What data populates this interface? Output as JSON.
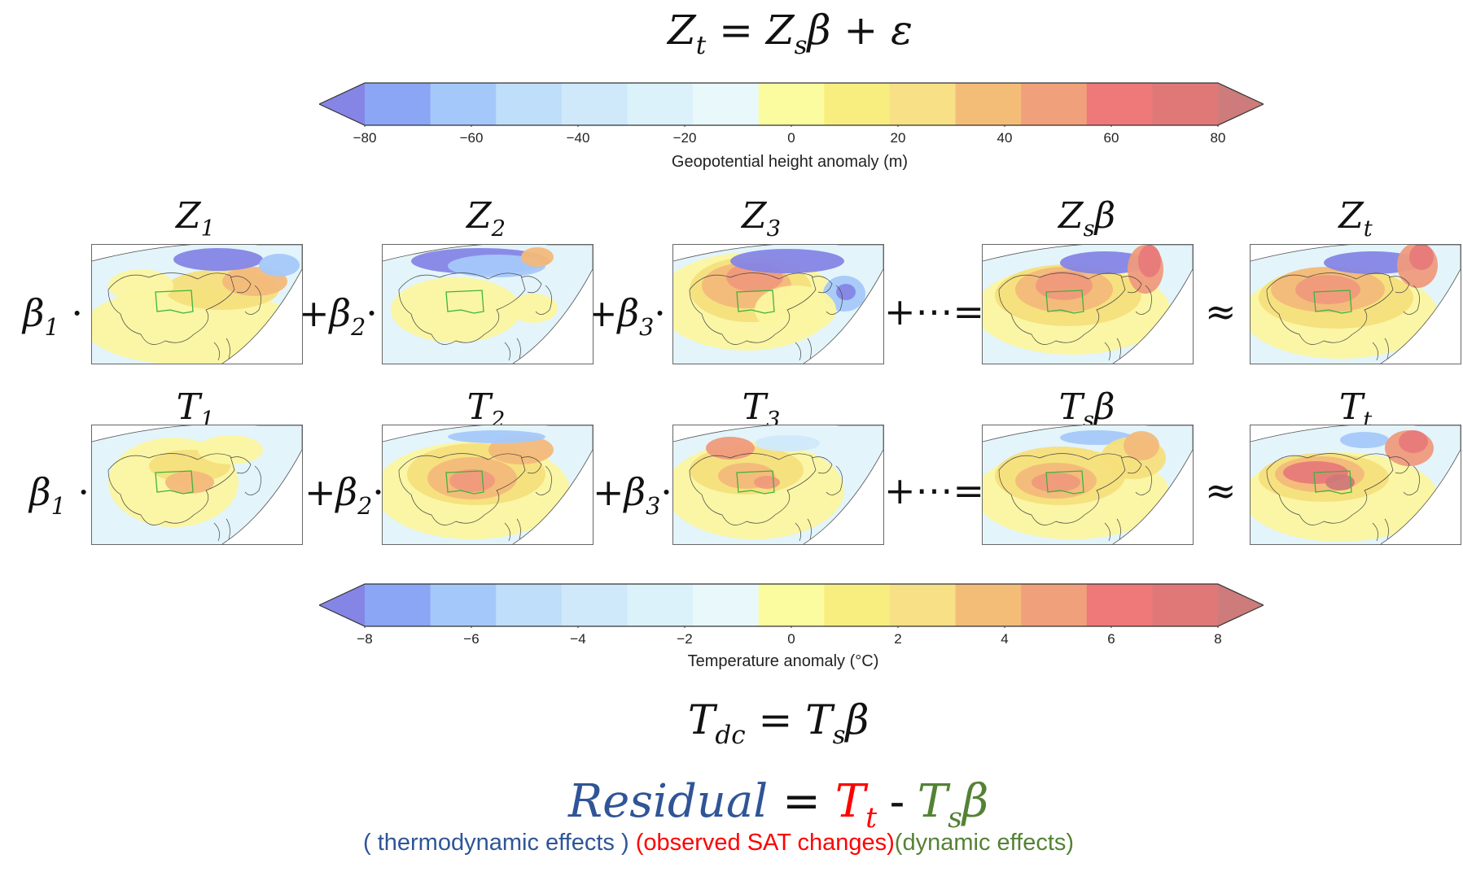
{
  "top_equation": {
    "lhs": "Z",
    "lhs_sub": "t",
    "mid": " = Z",
    "mid_sub": "s",
    "rhs": "β + ε"
  },
  "geopotential_colorbar": {
    "title": "Geopotential height anomaly (m)",
    "ticks": [
      "−80",
      "−60",
      "−40",
      "−20",
      "0",
      "20",
      "40",
      "60",
      "80"
    ],
    "colors": [
      "#8585e6",
      "#8aa6f5",
      "#a5c8fa",
      "#bfdefa",
      "#cfe9fb",
      "#dcf2fb",
      "#e9f9fb",
      "#fbfba0",
      "#f8ee80",
      "#f7e086",
      "#f3bd78",
      "#f1a07c",
      "#ef7878",
      "#e07878",
      "#cd7b7b"
    ]
  },
  "temperature_colorbar": {
    "title": "Temperature anomaly (°C)",
    "ticks": [
      "−8",
      "−6",
      "−4",
      "−2",
      "0",
      "2",
      "4",
      "6",
      "8"
    ],
    "colors": [
      "#8585e6",
      "#8aa6f5",
      "#a5c8fa",
      "#bfdefa",
      "#cfe9fb",
      "#dcf2fb",
      "#e9f9fb",
      "#fbfba0",
      "#f8ee80",
      "#f7e086",
      "#f3bd78",
      "#f1a07c",
      "#ef7878",
      "#e07878",
      "#cd7b7b"
    ]
  },
  "row_z": {
    "coef1": "β",
    "coef1_sub": "1",
    "dot": "·",
    "plus2": "+β",
    "plus2_sub": "2",
    "plus3": "+β",
    "plus3_sub": "3",
    "ellipsis_eq": "+⋯=",
    "approx": "≈",
    "titles": [
      {
        "base": "Z",
        "sub": "1",
        "tail": ""
      },
      {
        "base": "Z",
        "sub": "2",
        "tail": ""
      },
      {
        "base": "Z",
        "sub": "3",
        "tail": ""
      },
      {
        "base": "Z",
        "sub": "s",
        "tail": "β"
      },
      {
        "base": "Z",
        "sub": "t",
        "tail": ""
      }
    ]
  },
  "row_t": {
    "coef1": "β",
    "coef1_sub": "1",
    "dot": "·",
    "plus2": "+β",
    "plus2_sub": "2",
    "plus3": "+β",
    "plus3_sub": "3",
    "ellipsis_eq": "+⋯=",
    "approx": "≈",
    "titles": [
      {
        "base": "T",
        "sub": "1",
        "tail": ""
      },
      {
        "base": "T",
        "sub": "2",
        "tail": ""
      },
      {
        "base": "T",
        "sub": "3",
        "tail": ""
      },
      {
        "base": "T",
        "sub": "s",
        "tail": "β"
      },
      {
        "base": "T",
        "sub": "t",
        "tail": ""
      }
    ]
  },
  "dc_equation": {
    "lhs": "T",
    "lhs_sub": "dc",
    "mid": " = T",
    "mid_sub": "s",
    "rhs": "β"
  },
  "residual_equation": {
    "residual": "Residual",
    "equals": " = ",
    "tt": "T",
    "tt_sub": "t",
    "minus": " - ",
    "tsb": "T",
    "tsb_sub": "s",
    "tsb_tail": "β",
    "color_residual": "#2f5597",
    "color_tt": "#ff0000",
    "color_tsb": "#548235"
  },
  "legend": {
    "thermo": "( thermodynamic  effects )",
    "observed": "(observed SAT changes)",
    "dynamic": "(dynamic effects)"
  }
}
